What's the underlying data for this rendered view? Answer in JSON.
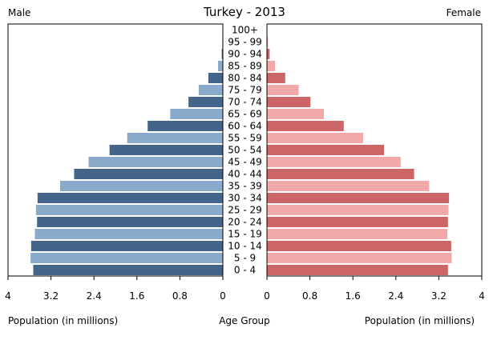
{
  "chart_data": {
    "type": "bar",
    "title": "Turkey - 2013",
    "left_header": "Male",
    "right_header": "Female",
    "center_label": "Age Group",
    "xlabel_left": "Population (in millions)",
    "xlabel_right": "Population (in millions)",
    "xlim": [
      0,
      4
    ],
    "left_ticks": [
      "4",
      "3.2",
      "2.4",
      "1.6",
      "0.8",
      "0"
    ],
    "right_ticks": [
      "0",
      "0.8",
      "1.6",
      "2.4",
      "3.2",
      "4"
    ],
    "categories": [
      "100+",
      "95 - 99",
      "90 - 94",
      "85 - 89",
      "80 - 84",
      "75 - 79",
      "70 - 74",
      "65 - 69",
      "60 - 64",
      "55 - 59",
      "50 - 54",
      "45 - 49",
      "40 - 44",
      "35 - 39",
      "30 - 34",
      "25 - 29",
      "20 - 24",
      "15 - 19",
      "10 - 14",
      "5 - 9",
      "0 - 4"
    ],
    "series": [
      {
        "name": "Male",
        "values": [
          0.0,
          0.01,
          0.02,
          0.09,
          0.27,
          0.45,
          0.64,
          0.98,
          1.4,
          1.78,
          2.11,
          2.5,
          2.77,
          3.03,
          3.45,
          3.48,
          3.46,
          3.5,
          3.57,
          3.58,
          3.53
        ]
      },
      {
        "name": "Female",
        "values": [
          0.0,
          0.02,
          0.05,
          0.15,
          0.34,
          0.59,
          0.81,
          1.06,
          1.43,
          1.79,
          2.18,
          2.49,
          2.74,
          3.02,
          3.39,
          3.38,
          3.37,
          3.36,
          3.43,
          3.44,
          3.37
        ]
      }
    ],
    "colors": {
      "male_dark": "#44658a",
      "male_light": "#8aaacc",
      "female_dark": "#cc6666",
      "female_light": "#f0a8a8"
    }
  }
}
